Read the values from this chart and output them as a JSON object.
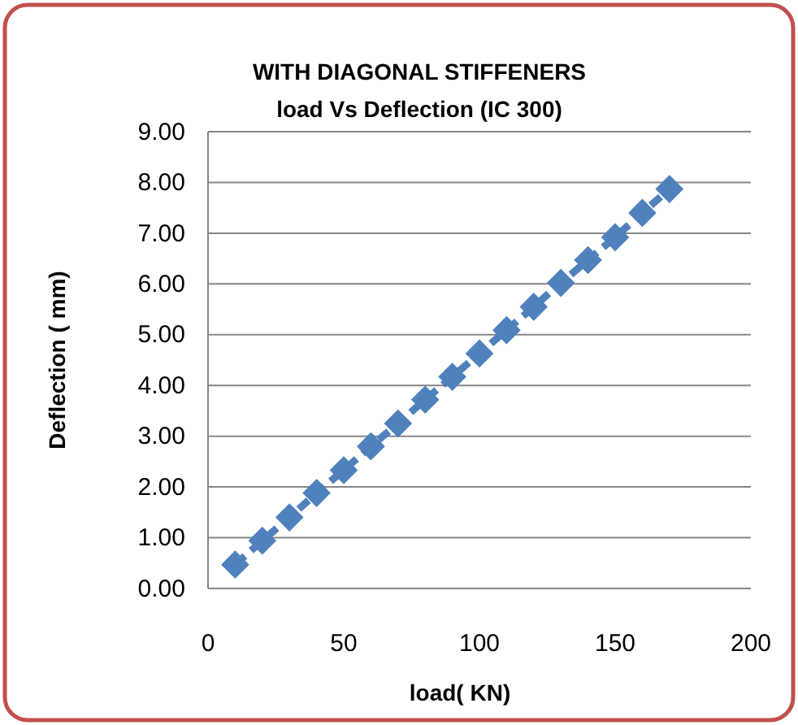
{
  "chart_data": {
    "type": "line",
    "title": "WITH DIAGONAL STIFFENERS",
    "subtitle": "load Vs Deflection (IC 300)",
    "xlabel": "load( KN)",
    "ylabel": "Deflection ( mm)",
    "x": [
      10,
      20,
      30,
      40,
      50,
      60,
      70,
      80,
      90,
      100,
      110,
      120,
      130,
      140,
      150,
      160,
      170
    ],
    "series": [
      {
        "color": "#4f81bd",
        "values": [
          0.47,
          0.94,
          1.4,
          1.88,
          2.33,
          2.8,
          3.25,
          3.72,
          4.17,
          4.63,
          5.09,
          5.55,
          6.02,
          6.47,
          6.92,
          7.4,
          7.87
        ]
      }
    ],
    "xlim": [
      0,
      200
    ],
    "xticks": [
      0,
      50,
      100,
      150,
      200
    ],
    "ylim": [
      0,
      9
    ],
    "yticks": [
      {
        "value": 0,
        "label": "0.00"
      },
      {
        "value": 1,
        "label": "1.00"
      },
      {
        "value": 2,
        "label": "2.00"
      },
      {
        "value": 3,
        "label": "3.00"
      },
      {
        "value": 4,
        "label": "4.00"
      },
      {
        "value": 5,
        "label": "5.00"
      },
      {
        "value": 6,
        "label": "6.00"
      },
      {
        "value": 7,
        "label": "7.00"
      },
      {
        "value": 8,
        "label": "8.00"
      },
      {
        "value": 9,
        "label": "9.00"
      }
    ],
    "grid": "y",
    "marker": "diamond",
    "line_style": "dashed"
  }
}
